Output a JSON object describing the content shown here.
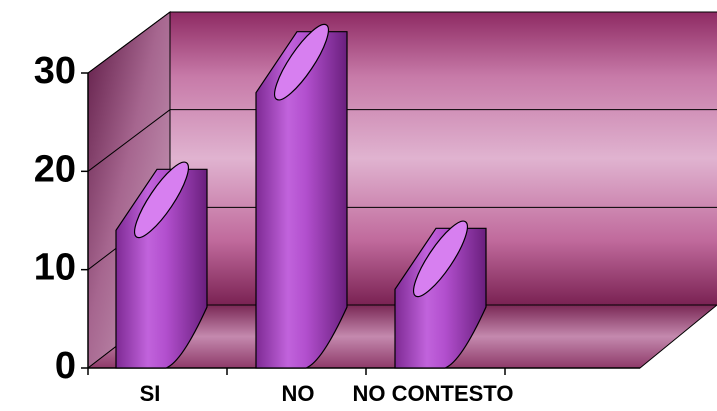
{
  "chart_data": {
    "type": "bar",
    "style": "3d-cylinder",
    "categories": [
      "SI",
      "NO",
      "NO CONTESTO"
    ],
    "values": [
      14,
      28,
      8
    ],
    "ylim": [
      0,
      30
    ],
    "yticks": [
      0,
      10,
      20,
      30
    ],
    "grid": true,
    "title": "",
    "xlabel": "",
    "ylabel": "",
    "colors": {
      "bar": "#a93fbf",
      "bar_dark": "#6d1f80",
      "bar_light": "#d77ff0",
      "wall": "#a33d78",
      "wall_light": "#d49bc0",
      "floor": "#7c2a5a"
    }
  }
}
